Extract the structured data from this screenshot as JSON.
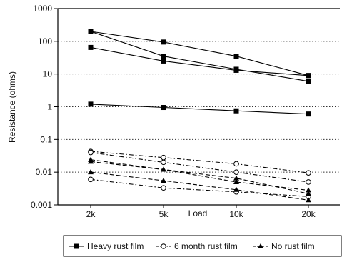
{
  "chart_data": {
    "type": "line",
    "xlabel": "Load",
    "ylabel": "Resistance (ohms)",
    "yscale": "log",
    "ylim": [
      0.001,
      1000
    ],
    "categories": [
      "2k",
      "5k",
      "10k",
      "20k"
    ],
    "yticks": [
      "1000",
      "100",
      "10",
      "1",
      "0.1",
      "0.01",
      "0.001"
    ],
    "grid": "horizontal dotted",
    "legend_position": "bottom",
    "legend": [
      {
        "label": "Heavy rust film",
        "marker": "square",
        "line": "solid"
      },
      {
        "label": "6 month rust film",
        "marker": "circle",
        "line": "dash-dot"
      },
      {
        "label": "No rust film",
        "marker": "triangle",
        "line": "dashed"
      }
    ],
    "series": [
      {
        "group": "Heavy rust film",
        "values": [
          200,
          95,
          35,
          9
        ]
      },
      {
        "group": "Heavy rust film",
        "values": [
          200,
          35,
          14,
          6
        ]
      },
      {
        "group": "Heavy rust film",
        "values": [
          65,
          25,
          13,
          9
        ]
      },
      {
        "group": "Heavy rust film",
        "values": [
          1.2,
          0.95,
          0.75,
          0.6
        ]
      },
      {
        "group": "6 month rust film",
        "values": [
          0.043,
          0.028,
          0.018,
          0.0095
        ]
      },
      {
        "group": "6 month rust film",
        "values": [
          0.04,
          0.02,
          0.01,
          0.005
        ]
      },
      {
        "group": "6 month rust film",
        "values": [
          0.006,
          0.0033,
          0.0025,
          0.0018
        ]
      },
      {
        "group": "No rust film",
        "values": [
          0.024,
          0.012,
          0.005,
          0.0028
        ]
      },
      {
        "group": "No rust film",
        "values": [
          0.021,
          0.012,
          0.0065,
          0.0022
        ]
      },
      {
        "group": "No rust film",
        "values": [
          0.01,
          0.0055,
          0.0029,
          0.0014
        ]
      }
    ]
  }
}
